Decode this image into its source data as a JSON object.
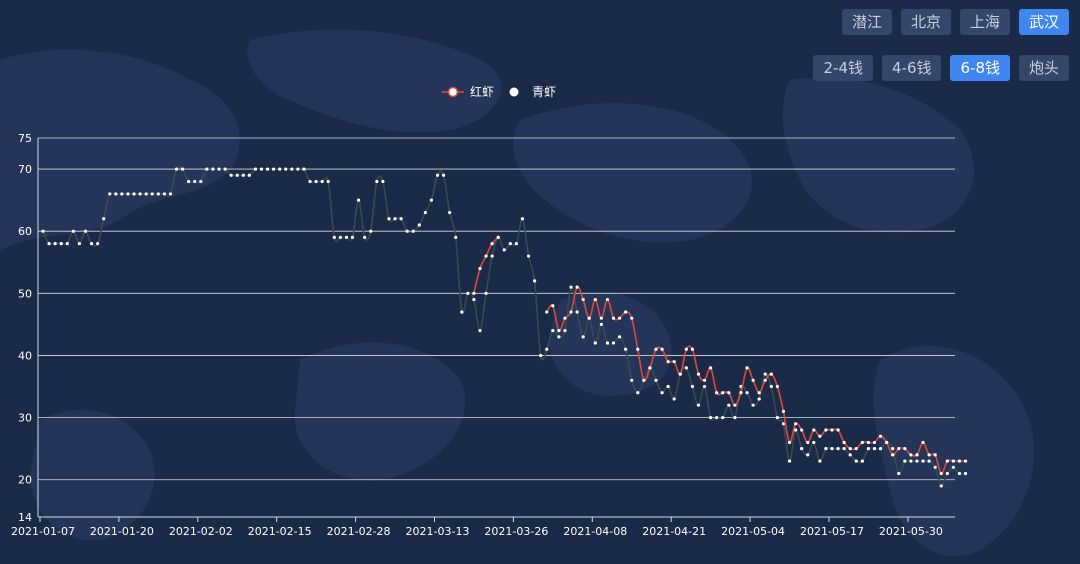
{
  "region_buttons": [
    {
      "label": "潜江",
      "active": false
    },
    {
      "label": "北京",
      "active": false
    },
    {
      "label": "上海",
      "active": false
    },
    {
      "label": "武汉",
      "active": true
    }
  ],
  "size_buttons": [
    {
      "label": "2-4钱",
      "active": false
    },
    {
      "label": "4-6钱",
      "active": false
    },
    {
      "label": "6-8钱",
      "active": true
    },
    {
      "label": "炮头",
      "active": false
    }
  ],
  "colors": {
    "background": "#1b2a48",
    "active_button": "#3f86f0",
    "red_series": "#e0493a",
    "green_series": "#3a4a4e",
    "gridline": "#d6dae2"
  },
  "chart_data": {
    "type": "line",
    "title": "",
    "xlabel": "",
    "ylabel": "",
    "ylim": [
      14,
      75
    ],
    "yticks": [
      14,
      20,
      30,
      40,
      50,
      60,
      70,
      75
    ],
    "grid": true,
    "legend_position": "top-center",
    "x_tick_labels": [
      "2021-01-07",
      "2021-01-20",
      "2021-02-02",
      "2021-02-15",
      "2021-02-28",
      "2021-03-13",
      "2021-03-26",
      "2021-04-08",
      "2021-04-21",
      "2021-05-04",
      "2021-05-17",
      "2021-05-30"
    ],
    "series": [
      {
        "name": "红虾",
        "color": "#e0493a",
        "points": [
          [
            "2021-03-19",
            50
          ],
          [
            "2021-03-20",
            54
          ],
          [
            "2021-03-21",
            56
          ],
          [
            "2021-03-22",
            58
          ],
          [
            "2021-03-23",
            59
          ],
          [
            "2021-03-31",
            47
          ],
          [
            "2021-04-01",
            48
          ],
          [
            "2021-04-02",
            44
          ],
          [
            "2021-04-03",
            46
          ],
          [
            "2021-04-04",
            47
          ],
          [
            "2021-04-05",
            51
          ],
          [
            "2021-04-06",
            49
          ],
          [
            "2021-04-07",
            46
          ],
          [
            "2021-04-08",
            49
          ],
          [
            "2021-04-09",
            46
          ],
          [
            "2021-04-10",
            49
          ],
          [
            "2021-04-11",
            46
          ],
          [
            "2021-04-12",
            46
          ],
          [
            "2021-04-13",
            47
          ],
          [
            "2021-04-14",
            46
          ],
          [
            "2021-04-15",
            41
          ],
          [
            "2021-04-16",
            36
          ],
          [
            "2021-04-17",
            38
          ],
          [
            "2021-04-18",
            41
          ],
          [
            "2021-04-19",
            41
          ],
          [
            "2021-04-20",
            39
          ],
          [
            "2021-04-21",
            39
          ],
          [
            "2021-04-22",
            37
          ],
          [
            "2021-04-23",
            41
          ],
          [
            "2021-04-24",
            41
          ],
          [
            "2021-04-25",
            37
          ],
          [
            "2021-04-26",
            36
          ],
          [
            "2021-04-27",
            38
          ],
          [
            "2021-04-28",
            34
          ],
          [
            "2021-04-29",
            34
          ],
          [
            "2021-04-30",
            34
          ],
          [
            "2021-05-01",
            32
          ],
          [
            "2021-05-02",
            34
          ],
          [
            "2021-05-03",
            38
          ],
          [
            "2021-05-04",
            36
          ],
          [
            "2021-05-05",
            34
          ],
          [
            "2021-05-06",
            36
          ],
          [
            "2021-05-07",
            37
          ],
          [
            "2021-05-08",
            35
          ],
          [
            "2021-05-09",
            31
          ],
          [
            "2021-05-10",
            26
          ],
          [
            "2021-05-11",
            29
          ],
          [
            "2021-05-12",
            28
          ],
          [
            "2021-05-13",
            26
          ],
          [
            "2021-05-14",
            28
          ],
          [
            "2021-05-15",
            27
          ],
          [
            "2021-05-16",
            28
          ],
          [
            "2021-05-17",
            28
          ],
          [
            "2021-05-18",
            28
          ],
          [
            "2021-05-19",
            26
          ],
          [
            "2021-05-20",
            25
          ],
          [
            "2021-05-21",
            25
          ],
          [
            "2021-05-22",
            26
          ],
          [
            "2021-05-23",
            26
          ],
          [
            "2021-05-24",
            26
          ],
          [
            "2021-05-25",
            27
          ],
          [
            "2021-05-26",
            26
          ],
          [
            "2021-05-27",
            24
          ],
          [
            "2021-05-28",
            25
          ],
          [
            "2021-05-29",
            25
          ],
          [
            "2021-05-30",
            24
          ],
          [
            "2021-05-31",
            24
          ],
          [
            "2021-06-01",
            26
          ],
          [
            "2021-06-02",
            24
          ],
          [
            "2021-06-03",
            24
          ],
          [
            "2021-06-04",
            21
          ],
          [
            "2021-06-05",
            23
          ],
          [
            "2021-06-06",
            23
          ],
          [
            "2021-06-07",
            23
          ],
          [
            "2021-06-08",
            23
          ]
        ]
      },
      {
        "name": "青虾",
        "color": "#3a4a4e",
        "points": [
          [
            "2021-01-07",
            60
          ],
          [
            "2021-01-08",
            58
          ],
          [
            "2021-01-09",
            58
          ],
          [
            "2021-01-10",
            58
          ],
          [
            "2021-01-11",
            58
          ],
          [
            "2021-01-12",
            60
          ],
          [
            "2021-01-13",
            58
          ],
          [
            "2021-01-14",
            60
          ],
          [
            "2021-01-15",
            58
          ],
          [
            "2021-01-16",
            58
          ],
          [
            "2021-01-17",
            62
          ],
          [
            "2021-01-18",
            66
          ],
          [
            "2021-01-19",
            66
          ],
          [
            "2021-01-20",
            66
          ],
          [
            "2021-01-21",
            66
          ],
          [
            "2021-01-22",
            66
          ],
          [
            "2021-01-23",
            66
          ],
          [
            "2021-01-24",
            66
          ],
          [
            "2021-01-25",
            66
          ],
          [
            "2021-01-26",
            66
          ],
          [
            "2021-01-27",
            66
          ],
          [
            "2021-01-28",
            66
          ],
          [
            "2021-01-29",
            70
          ],
          [
            "2021-01-30",
            70
          ],
          [
            "2021-01-31",
            68
          ],
          [
            "2021-02-01",
            68
          ],
          [
            "2021-02-02",
            68
          ],
          [
            "2021-02-03",
            70
          ],
          [
            "2021-02-04",
            70
          ],
          [
            "2021-02-05",
            70
          ],
          [
            "2021-02-06",
            70
          ],
          [
            "2021-02-07",
            69
          ],
          [
            "2021-02-08",
            69
          ],
          [
            "2021-02-09",
            69
          ],
          [
            "2021-02-10",
            69
          ],
          [
            "2021-02-11",
            70
          ],
          [
            "2021-02-12",
            70
          ],
          [
            "2021-02-13",
            70
          ],
          [
            "2021-02-14",
            70
          ],
          [
            "2021-02-15",
            70
          ],
          [
            "2021-02-16",
            70
          ],
          [
            "2021-02-17",
            70
          ],
          [
            "2021-02-18",
            70
          ],
          [
            "2021-02-19",
            70
          ],
          [
            "2021-02-20",
            68
          ],
          [
            "2021-02-21",
            68
          ],
          [
            "2021-02-22",
            68
          ],
          [
            "2021-02-23",
            68
          ],
          [
            "2021-02-24",
            59
          ],
          [
            "2021-02-25",
            59
          ],
          [
            "2021-02-26",
            59
          ],
          [
            "2021-02-27",
            59
          ],
          [
            "2021-02-28",
            65
          ],
          [
            "2021-03-01",
            59
          ],
          [
            "2021-03-02",
            60
          ],
          [
            "2021-03-03",
            68
          ],
          [
            "2021-03-04",
            68
          ],
          [
            "2021-03-05",
            62
          ],
          [
            "2021-03-06",
            62
          ],
          [
            "2021-03-07",
            62
          ],
          [
            "2021-03-08",
            60
          ],
          [
            "2021-03-09",
            60
          ],
          [
            "2021-03-10",
            61
          ],
          [
            "2021-03-11",
            63
          ],
          [
            "2021-03-12",
            65
          ],
          [
            "2021-03-13",
            69
          ],
          [
            "2021-03-14",
            69
          ],
          [
            "2021-03-15",
            63
          ],
          [
            "2021-03-16",
            59
          ],
          [
            "2021-03-17",
            47
          ],
          [
            "2021-03-18",
            50
          ],
          [
            "2021-03-19",
            49
          ],
          [
            "2021-03-20",
            44
          ],
          [
            "2021-03-21",
            50
          ],
          [
            "2021-03-22",
            56
          ],
          [
            "2021-03-23",
            59
          ],
          [
            "2021-03-24",
            57
          ],
          [
            "2021-03-25",
            58
          ],
          [
            "2021-03-26",
            58
          ],
          [
            "2021-03-27",
            62
          ],
          [
            "2021-03-28",
            56
          ],
          [
            "2021-03-29",
            52
          ],
          [
            "2021-03-30",
            40
          ],
          [
            "2021-03-31",
            41
          ],
          [
            "2021-04-01",
            44
          ],
          [
            "2021-04-02",
            43
          ],
          [
            "2021-04-03",
            44
          ],
          [
            "2021-04-04",
            51
          ],
          [
            "2021-04-05",
            47
          ],
          [
            "2021-04-06",
            43
          ],
          [
            "2021-04-07",
            46
          ],
          [
            "2021-04-08",
            42
          ],
          [
            "2021-04-09",
            45
          ],
          [
            "2021-04-10",
            42
          ],
          [
            "2021-04-11",
            42
          ],
          [
            "2021-04-12",
            43
          ],
          [
            "2021-04-13",
            41
          ],
          [
            "2021-04-14",
            36
          ],
          [
            "2021-04-15",
            34
          ],
          [
            "2021-04-16",
            36
          ],
          [
            "2021-04-17",
            38
          ],
          [
            "2021-04-18",
            36
          ],
          [
            "2021-04-19",
            34
          ],
          [
            "2021-04-20",
            35
          ],
          [
            "2021-04-21",
            33
          ],
          [
            "2021-04-22",
            37
          ],
          [
            "2021-04-23",
            38
          ],
          [
            "2021-04-24",
            35
          ],
          [
            "2021-04-25",
            32
          ],
          [
            "2021-04-26",
            35
          ],
          [
            "2021-04-27",
            30
          ],
          [
            "2021-04-28",
            30
          ],
          [
            "2021-04-29",
            30
          ],
          [
            "2021-04-30",
            32
          ],
          [
            "2021-05-01",
            30
          ],
          [
            "2021-05-02",
            35
          ],
          [
            "2021-05-03",
            34
          ],
          [
            "2021-05-04",
            32
          ],
          [
            "2021-05-05",
            33
          ],
          [
            "2021-05-06",
            37
          ],
          [
            "2021-05-07",
            35
          ],
          [
            "2021-05-08",
            30
          ],
          [
            "2021-05-09",
            29
          ],
          [
            "2021-05-10",
            23
          ],
          [
            "2021-05-11",
            28
          ],
          [
            "2021-05-12",
            25
          ],
          [
            "2021-05-13",
            24
          ],
          [
            "2021-05-14",
            26
          ],
          [
            "2021-05-15",
            23
          ],
          [
            "2021-05-16",
            25
          ],
          [
            "2021-05-17",
            25
          ],
          [
            "2021-05-18",
            25
          ],
          [
            "2021-05-19",
            25
          ],
          [
            "2021-05-20",
            24
          ],
          [
            "2021-05-21",
            23
          ],
          [
            "2021-05-22",
            23
          ],
          [
            "2021-05-23",
            25
          ],
          [
            "2021-05-24",
            25
          ],
          [
            "2021-05-25",
            25
          ],
          [
            "2021-05-26",
            26
          ],
          [
            "2021-05-27",
            25
          ],
          [
            "2021-05-28",
            21
          ],
          [
            "2021-05-29",
            23
          ],
          [
            "2021-05-30",
            23
          ],
          [
            "2021-05-31",
            23
          ],
          [
            "2021-06-01",
            23
          ],
          [
            "2021-06-02",
            23
          ],
          [
            "2021-06-03",
            22
          ],
          [
            "2021-06-04",
            19
          ],
          [
            "2021-06-05",
            21
          ],
          [
            "2021-06-06",
            22
          ],
          [
            "2021-06-07",
            21
          ],
          [
            "2021-06-08",
            21
          ]
        ]
      }
    ]
  }
}
